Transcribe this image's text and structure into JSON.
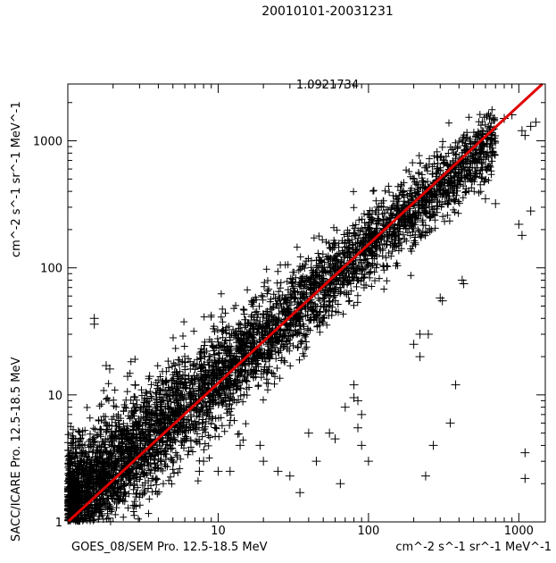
{
  "chart_data": {
    "type": "scatter",
    "title": "20010101-20031231",
    "subtitle": "1.0921734",
    "xlabel_left": "GOES_08/SEM Pro. 12.5-18.5 MeV",
    "xlabel_right": "cm^-2 s^-1 sr^-1 MeV^-1",
    "ylabel_bottom": "SACC/ICARE Pro. 12.5-18.5 MeV",
    "ylabel_top": "cm^-2 s^-1 sr^-1 MeV^-1",
    "xscale": "log",
    "yscale": "log",
    "xlim": [
      1,
      1500
    ],
    "ylim": [
      1,
      2800
    ],
    "x_ticks": [
      {
        "value": 1,
        "label": ""
      },
      {
        "value": 10,
        "label": "10"
      },
      {
        "value": 100,
        "label": "100"
      },
      {
        "value": 1000,
        "label": "1000"
      }
    ],
    "y_ticks": [
      {
        "value": 1,
        "label": "1"
      },
      {
        "value": 10,
        "label": "10"
      },
      {
        "value": 100,
        "label": "100"
      },
      {
        "value": 1000,
        "label": "1000"
      }
    ],
    "fit_line": {
      "slope": 1.0921734,
      "intercept": 0,
      "color": "#e00000"
    },
    "marker": "+",
    "marker_color": "#000000",
    "outliers": [
      [
        1.5,
        40
      ],
      [
        1.5,
        36
      ],
      [
        1.8,
        17
      ],
      [
        1.9,
        16
      ],
      [
        2.5,
        14
      ],
      [
        2.8,
        12
      ],
      [
        3.5,
        14
      ],
      [
        3.5,
        8
      ],
      [
        4.5,
        13
      ],
      [
        6,
        18
      ],
      [
        4,
        3.5
      ],
      [
        5,
        3
      ],
      [
        7.5,
        2.5
      ],
      [
        8,
        3
      ],
      [
        10,
        2.5
      ],
      [
        12,
        2.5
      ],
      [
        14,
        4
      ],
      [
        19,
        4
      ],
      [
        20,
        3
      ],
      [
        25,
        2.5
      ],
      [
        30,
        2.3
      ],
      [
        35,
        1.7
      ],
      [
        40,
        5
      ],
      [
        45,
        3
      ],
      [
        55,
        5
      ],
      [
        60,
        4.5
      ],
      [
        65,
        2
      ],
      [
        70,
        8
      ],
      [
        80,
        9.5
      ],
      [
        85,
        9
      ],
      [
        90,
        7
      ],
      [
        85,
        5.5
      ],
      [
        90,
        4
      ],
      [
        80,
        12
      ],
      [
        100,
        3
      ],
      [
        220,
        30
      ],
      [
        250,
        30
      ],
      [
        220,
        20
      ],
      [
        200,
        25
      ],
      [
        270,
        4
      ],
      [
        240,
        2.3
      ],
      [
        380,
        12
      ],
      [
        350,
        6
      ],
      [
        420,
        80
      ],
      [
        430,
        75
      ],
      [
        300,
        58
      ],
      [
        310,
        55
      ],
      [
        600,
        350
      ],
      [
        700,
        320
      ],
      [
        1000,
        220
      ],
      [
        1200,
        280
      ],
      [
        1050,
        180
      ],
      [
        1100,
        2.2
      ],
      [
        1100,
        3.5
      ],
      [
        1100,
        1100
      ],
      [
        1050,
        1200
      ],
      [
        900,
        1600
      ],
      [
        800,
        1500
      ],
      [
        1200,
        1300
      ],
      [
        1300,
        1400
      ]
    ]
  }
}
